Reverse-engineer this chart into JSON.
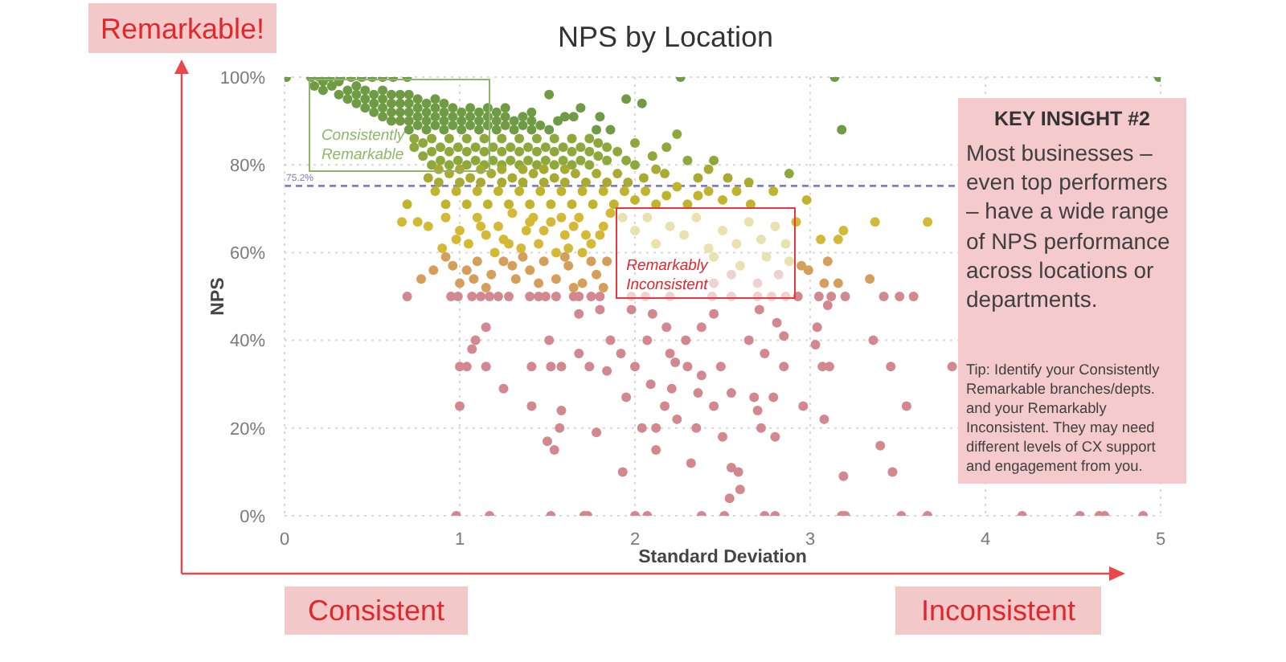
{
  "chart_data": {
    "type": "scatter",
    "title": "NPS by Location",
    "xlabel": "Standard Deviation",
    "ylabel": "NPS",
    "xlim": [
      0,
      5
    ],
    "xticks": [
      0,
      1,
      2,
      3,
      4,
      5
    ],
    "ylim": [
      0,
      100
    ],
    "yticks": [
      {
        "value": 0,
        "label": "0%"
      },
      {
        "value": 20,
        "label": "20%"
      },
      {
        "value": 40,
        "label": "40%"
      },
      {
        "value": 60,
        "label": "60%"
      },
      {
        "value": 80,
        "label": "80%"
      },
      {
        "value": 100,
        "label": "100%"
      }
    ],
    "grid": true,
    "marker": "circle",
    "ref_lines": [
      {
        "axis": "y",
        "value": 75.2,
        "label": "75.2%",
        "color": "#7f7fc4",
        "line_style": "dashed"
      }
    ],
    "annotations": [
      "Remarkable!",
      "Consistent",
      "Inconsistent",
      "KEY INSIGHT #2",
      "Most businesses – even top performers – have a wide range of NPS performance across locations or departments.",
      "Tip: Identify your Consistently Remarkable branches/depts. and your Remarkably Inconsistent. They may need different levels of CX support and engagement from you.",
      {
        "text": "Consistently Remarkable",
        "x": 0.66,
        "y": 89
      },
      {
        "text": "Remarkably Inconsistent",
        "x": 2.4,
        "y": 60
      }
    ],
    "series": [
      {
        "color": "#6e9b44",
        "x": [
          0.01,
          0.15,
          0.2,
          0.26,
          0.32,
          0.38,
          0.44,
          0.5,
          0.56,
          0.62,
          0.7,
          2.26,
          3.14,
          4.99,
          0.17,
          0.22,
          0.22,
          0.27,
          0.31,
          0.31,
          0.36,
          0.36,
          0.41,
          0.41,
          0.41,
          0.46,
          0.46,
          0.46,
          0.51,
          0.51,
          0.51,
          0.56,
          0.56,
          0.56,
          0.56,
          0.61,
          0.61,
          0.61,
          0.61,
          0.66,
          0.66,
          0.66,
          0.66,
          0.71,
          0.71,
          0.71,
          0.71,
          0.71,
          0.76,
          0.76,
          0.76,
          0.76,
          0.81,
          0.81,
          0.81,
          0.81,
          0.86,
          0.86,
          0.86,
          0.86,
          0.91,
          0.91,
          0.91,
          0.91,
          0.96,
          0.96,
          0.96,
          1.01,
          1.01,
          1.01,
          1.06,
          1.06,
          1.06,
          1.11,
          1.11,
          1.11,
          1.16,
          1.16,
          1.16,
          1.21,
          1.21,
          1.21,
          1.26,
          1.26,
          1.26,
          1.31,
          1.31,
          1.36,
          1.36,
          1.41,
          1.41,
          1.41,
          1.46,
          1.51,
          1.51,
          1.56,
          1.6,
          1.65,
          1.69,
          1.78,
          1.8,
          1.86,
          1.95,
          2.04,
          3.18
        ],
        "values": [
          100,
          100,
          100,
          100,
          100,
          100,
          100,
          100,
          100,
          100,
          100,
          100,
          100,
          100,
          98,
          97,
          99,
          98,
          96,
          99,
          95,
          97,
          94,
          96,
          98,
          93,
          95,
          97,
          92,
          94,
          96,
          91,
          93,
          95,
          97,
          90,
          92,
          94,
          96,
          90,
          92,
          94,
          96,
          88,
          90,
          92,
          94,
          96,
          89,
          91,
          93,
          95,
          88,
          90,
          92,
          94,
          89,
          91,
          93,
          95,
          88,
          90,
          92,
          94,
          89,
          91,
          93,
          88,
          90,
          92,
          89,
          91,
          93,
          88,
          90,
          92,
          89,
          91,
          93,
          88,
          90,
          92,
          89,
          91,
          93,
          88,
          90,
          89,
          91,
          88,
          90,
          92,
          89,
          88,
          96,
          90,
          91,
          91,
          93,
          88,
          91,
          88,
          95,
          94,
          88
        ]
      },
      {
        "color": "#8ea83c",
        "x": [
          0.74,
          0.74,
          0.79,
          0.79,
          0.84,
          0.84,
          0.84,
          0.89,
          0.89,
          0.94,
          0.94,
          0.94,
          0.99,
          0.99,
          1.04,
          1.04,
          1.04,
          1.09,
          1.09,
          1.14,
          1.14,
          1.14,
          1.19,
          1.19,
          1.24,
          1.24,
          1.24,
          1.29,
          1.29,
          1.34,
          1.34,
          1.34,
          1.39,
          1.39,
          1.44,
          1.44,
          1.44,
          1.49,
          1.49,
          1.54,
          1.54,
          1.54,
          1.59,
          1.59,
          1.64,
          1.64,
          1.64,
          1.69,
          1.69,
          1.74,
          1.74,
          1.74,
          1.79,
          1.79,
          1.84,
          1.84,
          1.9,
          1.95,
          2.0,
          2.0,
          2.1,
          2.18,
          2.24,
          2.3,
          2.45,
          2.88
        ],
        "values": [
          84,
          86,
          82,
          85,
          80,
          83,
          86,
          81,
          84,
          80,
          83,
          86,
          81,
          84,
          80,
          83,
          86,
          81,
          84,
          80,
          83,
          86,
          81,
          84,
          80,
          83,
          86,
          81,
          84,
          80,
          83,
          86,
          81,
          84,
          80,
          83,
          86,
          81,
          84,
          80,
          83,
          86,
          81,
          84,
          80,
          83,
          86,
          81,
          84,
          80,
          83,
          86,
          82,
          85,
          81,
          84,
          83,
          81,
          80,
          85,
          82,
          84,
          87,
          81,
          81,
          78
        ]
      },
      {
        "color": "#a8aa32",
        "x": [
          0.82,
          0.88,
          0.88,
          0.94,
          1.0,
          1.0,
          1.06,
          1.12,
          1.12,
          1.18,
          1.24,
          1.24,
          1.3,
          1.36,
          1.36,
          1.42,
          1.48,
          1.48,
          1.54,
          1.6,
          1.6,
          1.66,
          1.72,
          1.78,
          1.84,
          1.9,
          1.96,
          2.05,
          2.12,
          2.17,
          2.36,
          2.42,
          2.53,
          2.65
        ],
        "values": [
          77,
          76,
          79,
          78,
          76,
          79,
          77,
          79,
          76,
          78,
          76,
          79,
          77,
          79,
          76,
          78,
          76,
          79,
          77,
          79,
          76,
          78,
          76,
          78,
          76,
          78,
          76,
          77,
          79,
          78,
          77,
          79,
          77,
          76
        ]
      },
      {
        "color": "#c0b42c",
        "x": [
          0.7,
          0.86,
          0.92,
          0.98,
          1.04,
          1.1,
          1.16,
          1.22,
          1.28,
          1.34,
          1.4,
          1.46,
          1.52,
          1.58,
          1.64,
          1.7,
          1.76,
          1.82,
          1.88,
          1.94,
          2.0,
          2.06,
          2.12,
          2.18,
          2.24,
          2.3,
          2.36,
          2.42,
          2.5,
          2.58,
          2.66,
          2.79,
          2.98
        ],
        "values": [
          71,
          74,
          71,
          74,
          71,
          74,
          71,
          74,
          71,
          74,
          71,
          74,
          71,
          74,
          71,
          74,
          71,
          74,
          71,
          74,
          72,
          74,
          71,
          73,
          75,
          71,
          73,
          74,
          72,
          74,
          71,
          74,
          72
        ]
      },
      {
        "color": "#d4b936",
        "x": [
          0.67,
          0.76,
          0.82,
          0.92,
          1.0,
          1.1,
          1.15,
          1.22,
          1.3,
          1.38,
          1.45,
          1.52,
          1.6,
          1.68,
          1.75,
          1.82,
          1.86,
          0.9,
          1.05,
          1.2,
          1.35,
          1.55,
          1.7,
          1.8,
          2.92,
          3.37,
          3.67,
          3.06,
          3.16,
          3.19,
          1.25,
          1.42,
          1.62,
          1.12,
          1.28,
          1.48,
          1.65,
          1.72,
          0.98,
          1.4,
          1.58
        ],
        "values": [
          67,
          67,
          66,
          68,
          65,
          68,
          64,
          66,
          69,
          65,
          62,
          67,
          64,
          68,
          62,
          66,
          69,
          61,
          62,
          60,
          61,
          60,
          60,
          64,
          67,
          67,
          67,
          63,
          63,
          65,
          63,
          68,
          61,
          66,
          62,
          65,
          66,
          64,
          63,
          67,
          68
        ]
      },
      {
        "color": "#d59e5a",
        "x": [
          0.85,
          0.92,
          0.96,
          1.04,
          1.1,
          1.18,
          1.25,
          1.32,
          1.4,
          1.48,
          1.55,
          1.62,
          1.7,
          1.78,
          1.84,
          1.82,
          3.1,
          2.95,
          2.99,
          3.08,
          3.16,
          3.34,
          0.78,
          1.0,
          1.15,
          1.45,
          1.65,
          1.3,
          1.36,
          1.6,
          1.75,
          1.08
        ],
        "values": [
          56,
          59,
          57,
          56,
          58,
          55,
          58,
          54,
          56,
          58,
          54,
          57,
          53,
          55,
          58,
          52,
          58,
          57,
          56,
          53,
          53,
          54,
          54,
          53,
          52,
          53,
          52,
          57,
          59,
          59,
          58,
          54
        ]
      },
      {
        "color": "#d3878f",
        "x": [
          0.7,
          0.95,
          0.99,
          1.07,
          1.12,
          1.17,
          1.22,
          1.28,
          1.4,
          1.45,
          1.49,
          1.55,
          1.65,
          1.68,
          1.75,
          1.8,
          2.93,
          3.05,
          3.12,
          3.2,
          3.42,
          3.51,
          3.59,
          1.15,
          1.09,
          1.07,
          1.0,
          1.04,
          1.15,
          1.25,
          1.0,
          1.41,
          1.41,
          1.51,
          1.52,
          1.58,
          1.58,
          1.57,
          1.5,
          1.54,
          1.68,
          1.74,
          1.8,
          1.68,
          1.86,
          1.92,
          1.84,
          1.78,
          1.93,
          1.95,
          1.98,
          2.0,
          2.04,
          2.07,
          2.09,
          2.1,
          2.12,
          2.12,
          2.17,
          2.18,
          2.2,
          2.21,
          2.23,
          2.24,
          2.29,
          2.3,
          2.32,
          2.35,
          2.36,
          2.38,
          2.38,
          2.45,
          2.45,
          2.49,
          2.5,
          2.54,
          2.55,
          2.55,
          2.59,
          2.6,
          2.65,
          2.68,
          2.7,
          2.71,
          2.72,
          2.74,
          2.79,
          2.8,
          2.81,
          2.85,
          2.85,
          2.96,
          3.03,
          3.04,
          3.07,
          3.11,
          3.08,
          3.1,
          3.36,
          3.46,
          3.81,
          3.55,
          3.4,
          3.47,
          3.19,
          0.98,
          1.17,
          1.52,
          1.71,
          1.73,
          2.0,
          2.07,
          2.38,
          2.51,
          2.74,
          2.8,
          3.18,
          3.2,
          3.52,
          3.67,
          4.21,
          4.54,
          4.65,
          4.68,
          4.9
        ],
        "values": [
          50,
          50,
          50,
          50,
          50,
          50,
          50,
          50,
          50,
          50,
          50,
          50,
          50,
          50,
          50,
          50,
          50,
          50,
          50,
          50,
          50,
          50,
          50,
          43,
          40,
          38,
          34,
          34,
          34,
          29,
          25,
          25,
          34,
          40,
          34,
          34,
          24,
          20,
          17,
          15,
          37,
          34,
          47,
          46,
          40,
          37,
          33,
          19,
          10,
          27,
          47,
          34,
          20,
          40,
          30,
          46,
          20,
          15,
          25,
          43,
          37,
          29,
          35,
          22,
          40,
          34,
          12,
          20,
          28,
          32,
          43,
          25,
          46,
          34,
          18,
          4,
          11,
          28,
          10,
          6,
          40,
          27,
          24,
          47,
          20,
          37,
          27,
          18,
          44,
          41,
          34,
          25,
          39,
          43,
          34,
          34,
          22,
          48,
          40,
          34,
          34,
          25,
          16,
          10,
          9,
          0,
          0,
          0,
          0,
          0,
          0,
          0,
          0,
          0,
          0,
          0,
          0,
          0,
          0,
          0,
          0,
          0,
          0,
          0,
          0
        ]
      },
      {
        "color": "#e9e1ae",
        "x": [
          1.93,
          2.0,
          2.07,
          2.12,
          2.2,
          2.28,
          2.35,
          2.42,
          2.5,
          2.58,
          2.65,
          2.72,
          2.8,
          2.86,
          2.45,
          2.6,
          2.75,
          2.88
        ],
        "values": [
          68,
          65,
          68,
          62,
          66,
          64,
          68,
          61,
          65,
          62,
          67,
          63,
          66,
          62,
          59,
          57,
          59,
          58
        ]
      },
      {
        "color": "#edd3cf",
        "x": [
          2.45,
          2.55,
          2.7,
          2.82,
          1.98,
          2.06,
          2.2,
          2.44,
          2.55,
          2.7,
          2.78,
          2.86
        ],
        "values": [
          53,
          55,
          53,
          55,
          50,
          50,
          50,
          50,
          50,
          50,
          50,
          50
        ]
      }
    ]
  }
}
